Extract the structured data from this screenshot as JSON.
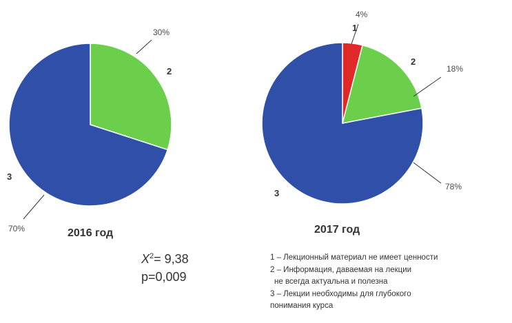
{
  "chart_data": [
    {
      "type": "pie",
      "title": "2016 год",
      "slices": [
        {
          "label": "2",
          "value": 30,
          "value_label": "30%",
          "color": "#6bcf4c"
        },
        {
          "label": "3",
          "value": 70,
          "value_label": "70%",
          "color": "#2f4fa8"
        }
      ]
    },
    {
      "type": "pie",
      "title": "2017 год",
      "slices": [
        {
          "label": "1",
          "value": 4,
          "value_label": "4%",
          "color": "#e02a2a"
        },
        {
          "label": "2",
          "value": 18,
          "value_label": "18%",
          "color": "#6bcf4c"
        },
        {
          "label": "3",
          "value": 78,
          "value_label": "78%",
          "color": "#2f4fa8"
        }
      ]
    }
  ],
  "stats": {
    "chi_label": "X",
    "chi_sup": "2",
    "chi_value": "= 9,38",
    "p_value": "p=0,009"
  },
  "legend": {
    "line1": "1 – Лекционный материал не имеет ценности",
    "line2": "2 – Информация, даваемая на лекции",
    "line2b": "не всегда актуальна и полезна",
    "line3": "3 – Лекции необходимы для глубокого",
    "line3b": "понимания курса"
  }
}
